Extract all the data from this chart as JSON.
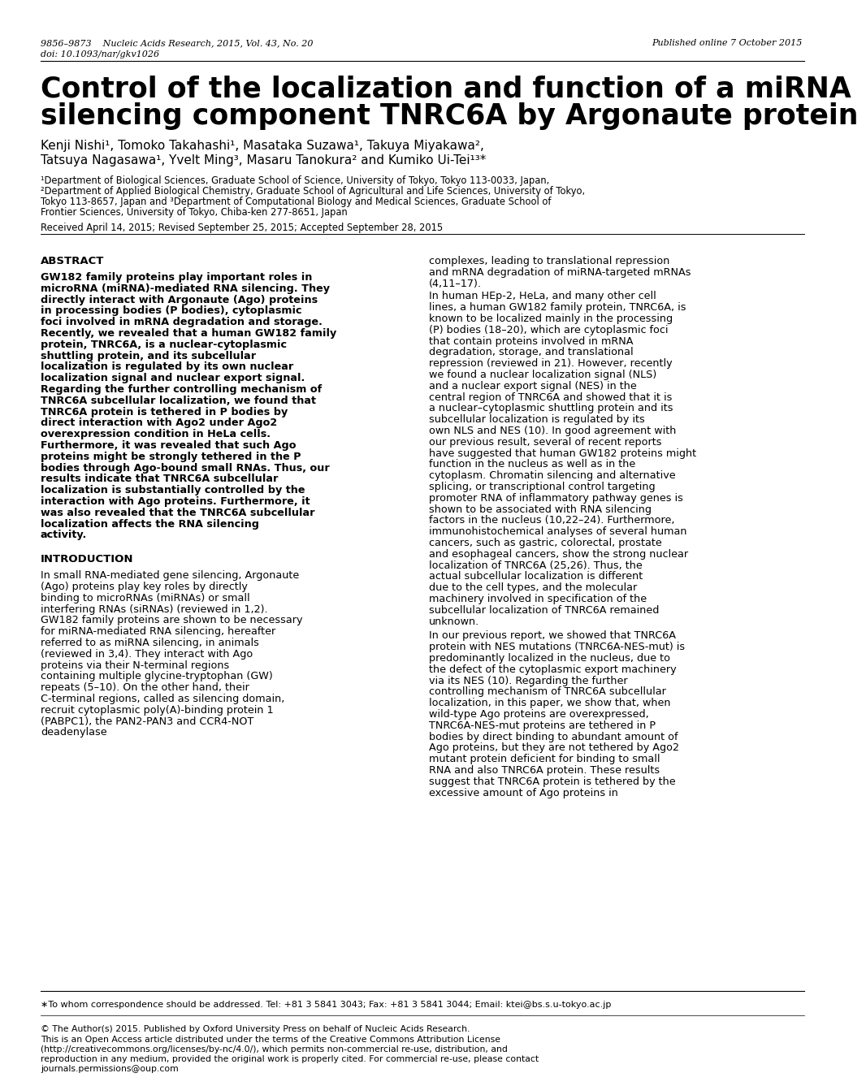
{
  "bg_color": "#ffffff",
  "header_left_line1": "9856–9873    Nucleic Acids Research, 2015, Vol. 43, No. 20",
  "header_left_line2": "doi: 10.1093/nar/gkv1026",
  "header_right": "Published online 7 October 2015",
  "title_line1": "Control of the localization and function of a miRNA",
  "title_line2": "silencing component TNRC6A by Argonaute protein",
  "authors_line1": "Kenji Nishi¹, Tomoko Takahashi¹, Masataka Suzawa¹, Takuya Miyakawa²,",
  "authors_line2": "Tatsuya Nagasawa¹, Yvelt Ming³, Masaru Tanokura² and Kumiko Ui-Tei¹³*",
  "affil1": "¹Department of Biological Sciences, Graduate School of Science, University of Tokyo, Tokyo 113-0033, Japan,",
  "affil2": "²Department of Applied Biological Chemistry, Graduate School of Agricultural and Life Sciences, University of Tokyo,",
  "affil3": "Tokyo 113-8657, Japan and ³Department of Computational Biology and Medical Sciences, Graduate School of",
  "affil4": "Frontier Sciences, University of Tokyo, Chiba-ken 277-8651, Japan",
  "received": "Received April 14, 2015; Revised September 25, 2015; Accepted September 28, 2015",
  "abstract_title": "ABSTRACT",
  "abstract_text": "GW182 family proteins play important roles in microRNA (miRNA)-mediated RNA silencing. They directly interact with Argonaute (Ago) proteins in processing bodies (P bodies), cytoplasmic foci involved in mRNA degradation and storage. Recently, we revealed that a human GW182 family protein, TNRC6A, is a nuclear-cytoplasmic shuttling protein, and its subcellular localization is regulated by its own nuclear localization signal and nuclear export signal. Regarding the further controlling mechanism of TNRC6A subcellular localization, we found that TNRC6A protein is tethered in P bodies by direct interaction with Ago2 under Ago2 overexpression condition in HeLa cells. Furthermore, it was revealed that such Ago proteins might be strongly tethered in the P bodies through Ago-bound small RNAs. Thus, our results indicate that TNRC6A subcellular localization is substantially controlled by the interaction with Ago proteins. Furthermore, it was also revealed that the TNRC6A subcellular localization affects the RNA silencing activity.",
  "intro_title": "INTRODUCTION",
  "intro_text": "In small RNA-mediated gene silencing, Argonaute (Ago) proteins play key roles by directly binding to microRNAs (miRNAs) or small interfering RNAs (siRNAs) (reviewed in 1,2). GW182 family proteins are shown to be necessary for miRNA-mediated RNA silencing, hereafter referred to as miRNA silencing, in animals (reviewed in 3,4). They interact with Ago proteins via their N-terminal regions containing multiple glycine-tryptophan (GW) repeats (5–10). On the other hand, their C-terminal regions, called as silencing domain, recruit cytoplasmic poly(A)-binding protein 1 (PABPC1), the PAN2-PAN3 and CCR4-NOT deadenylase",
  "right_col_para1": "complexes, leading to translational repression and mRNA degradation of miRNA-targeted mRNAs (4,11–17).",
  "right_col_para2": "    In human HEp-2, HeLa, and many other cell lines, a human GW182 family protein, TNRC6A, is known to be localized mainly in the processing (P) bodies (18–20), which are cytoplasmic foci that contain proteins involved in mRNA degradation, storage, and translational repression (reviewed in 21). However, recently we found a nuclear localization signal (NLS) and a nuclear export signal (NES) in the central region of TNRC6A and showed that it is a nuclear–cytoplasmic shuttling protein and its subcellular localization is regulated by its own NLS and NES (10). In good agreement with our previous result, several of recent reports have suggested that human GW182 proteins might function in the nucleus as well as in the cytoplasm. Chromatin silencing and alternative splicing, or transcriptional control targeting promoter RNA of inflammatory pathway genes is shown to be associated with RNA silencing factors in the nucleus (10,22–24). Furthermore, immunohistochemical analyses of several human cancers, such as gastric, colorectal, prostate and esophageal cancers, show the strong nuclear localization of TNRC6A (25,26). Thus, the actual subcellular localization is different due to the cell types, and the molecular machinery involved in specification of the subcellular localization of TNRC6A remained unknown.",
  "right_col_para3": "    In our previous report, we showed that TNRC6A protein with NES mutations (TNRC6A-NES-mut) is predominantly localized in the nucleus, due to the defect of the cytoplasmic export machinery via its NES (10). Regarding the further controlling mechanism of TNRC6A subcellular localization, in this paper, we show that, when wild-type Ago proteins are overexpressed, TNRC6A-NES-mut proteins are tethered in P bodies by direct binding to abundant amount of Ago proteins, but they are not tethered by Ago2 mutant protein deficient for binding to small RNA and also TNRC6A protein. These results suggest that TNRC6A protein is tethered by the excessive amount of Ago proteins in",
  "footnote_star": "∗To whom correspondence should be addressed. Tel: +81 3 5841 3043; Fax: +81 3 5841 3044; Email: ktei@bs.s.u-tokyo.ac.jp",
  "footnote_copy": "© The Author(s) 2015. Published by Oxford University Press on behalf of Nucleic Acids Research.",
  "footnote_oa": "This is an Open Access article distributed under the terms of the Creative Commons Attribution License (http://creativecommons.org/licenses/by-nc/4.0/), which permits non-commercial re-use, distribution, and reproduction in any medium, provided the original work is properly cited. For commercial re-use, please contact journals.permissions@oup.com"
}
